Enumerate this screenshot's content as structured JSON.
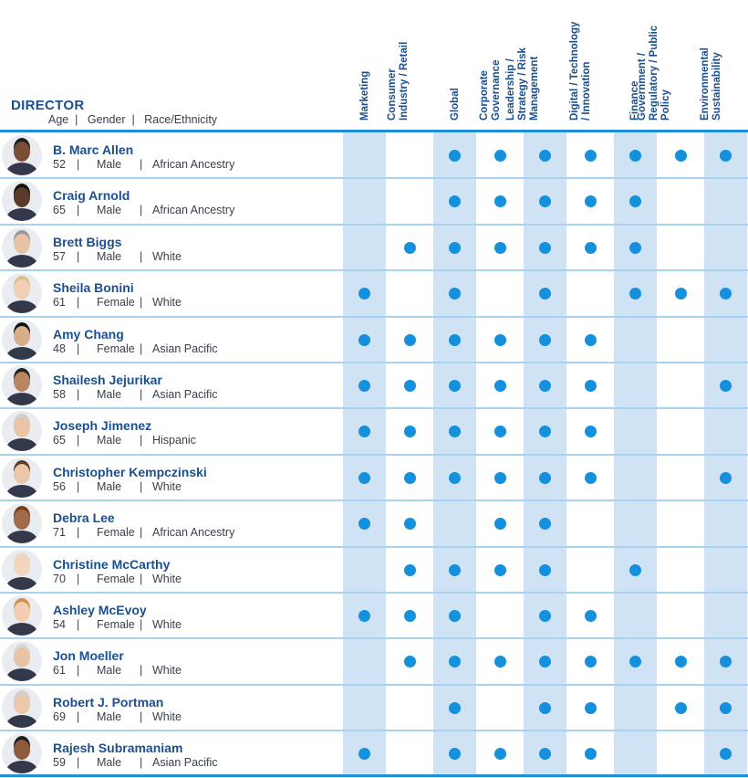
{
  "header": {
    "title": "DIRECTOR",
    "subtitle": "Age  |   Gender  |   Race/Ethnicity"
  },
  "columns": [
    "Marketing",
    "Consumer\nIndustry / Retail",
    "Global",
    "Corporate\nGovernance",
    "Leadership /\nStrategy / Risk\nManagement",
    "Digital / Technology\n/ Innovation",
    "Finance",
    "Government /\nRegulatory / Public\nPolicy",
    "Environmental\nSustainability"
  ],
  "colors": {
    "accent": "#1490dc",
    "shade": "#cfe3f5",
    "title": "#1b4f8f"
  },
  "directors": [
    {
      "name": "B. Marc Allen",
      "age": "52",
      "gender": "Male",
      "race": "African Ancestry",
      "skills": [
        0,
        0,
        1,
        1,
        1,
        1,
        1,
        1,
        1
      ]
    },
    {
      "name": "Craig Arnold",
      "age": "65",
      "gender": "Male",
      "race": "African Ancestry",
      "skills": [
        0,
        0,
        1,
        1,
        1,
        1,
        1,
        0,
        0
      ]
    },
    {
      "name": "Brett Biggs",
      "age": "57",
      "gender": "Male",
      "race": "White",
      "skills": [
        0,
        1,
        1,
        1,
        1,
        1,
        1,
        0,
        0
      ]
    },
    {
      "name": "Sheila Bonini",
      "age": "61",
      "gender": "Female",
      "race": "White",
      "skills": [
        1,
        0,
        1,
        0,
        1,
        0,
        1,
        1,
        1
      ]
    },
    {
      "name": "Amy Chang",
      "age": "48",
      "gender": "Female",
      "race": "Asian Pacific",
      "skills": [
        1,
        1,
        1,
        1,
        1,
        1,
        0,
        0,
        0
      ]
    },
    {
      "name": "Shailesh Jejurikar",
      "age": "58",
      "gender": "Male",
      "race": "Asian Pacific",
      "skills": [
        1,
        1,
        1,
        1,
        1,
        1,
        0,
        0,
        1
      ]
    },
    {
      "name": "Joseph Jimenez",
      "age": "65",
      "gender": "Male",
      "race": "Hispanic",
      "skills": [
        1,
        1,
        1,
        1,
        1,
        1,
        0,
        0,
        0
      ]
    },
    {
      "name": "Christopher Kempczinski",
      "age": "56",
      "gender": "Male",
      "race": "White",
      "skills": [
        1,
        1,
        1,
        1,
        1,
        1,
        0,
        0,
        1
      ]
    },
    {
      "name": "Debra Lee",
      "age": "71",
      "gender": "Female",
      "race": "African Ancestry",
      "skills": [
        1,
        1,
        0,
        1,
        1,
        0,
        0,
        0,
        0
      ]
    },
    {
      "name": "Christine McCarthy",
      "age": "70",
      "gender": "Female",
      "race": "White",
      "skills": [
        0,
        1,
        1,
        1,
        1,
        0,
        1,
        0,
        0
      ]
    },
    {
      "name": "Ashley McEvoy",
      "age": "54",
      "gender": "Female",
      "race": "White",
      "skills": [
        1,
        1,
        1,
        0,
        1,
        1,
        0,
        0,
        0
      ]
    },
    {
      "name": "Jon Moeller",
      "age": "61",
      "gender": "Male",
      "race": "White",
      "skills": [
        0,
        1,
        1,
        1,
        1,
        1,
        1,
        1,
        1
      ]
    },
    {
      "name": "Robert J. Portman",
      "age": "69",
      "gender": "Male",
      "race": "White",
      "skills": [
        0,
        0,
        1,
        0,
        1,
        1,
        0,
        1,
        1
      ]
    },
    {
      "name": "Rajesh Subramaniam",
      "age": "59",
      "gender": "Male",
      "race": "Asian Pacific",
      "skills": [
        1,
        0,
        1,
        1,
        1,
        1,
        0,
        0,
        1
      ]
    }
  ]
}
